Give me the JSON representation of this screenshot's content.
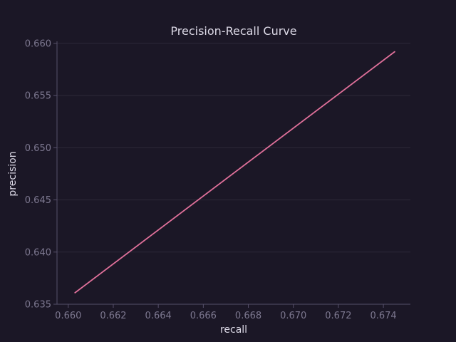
{
  "chart_data": {
    "type": "line",
    "title": "Precision-Recall Curve",
    "xlabel": "recall",
    "ylabel": "precision",
    "xlim": [
      0.6595,
      0.6752
    ],
    "ylim": [
      0.635,
      0.6602
    ],
    "x_ticks": [
      0.66,
      0.662,
      0.664,
      0.666,
      0.668,
      0.67,
      0.672,
      0.674
    ],
    "x_tick_labels": [
      "0.660",
      "0.662",
      "0.664",
      "0.666",
      "0.668",
      "0.670",
      "0.672",
      "0.674"
    ],
    "y_ticks": [
      0.635,
      0.64,
      0.645,
      0.65,
      0.655,
      0.66
    ],
    "y_tick_labels": [
      "0.635",
      "0.640",
      "0.645",
      "0.650",
      "0.655",
      "0.660"
    ],
    "grid": true,
    "series": [
      {
        "color": "#e0709a",
        "x": [
          0.6603,
          0.6745
        ],
        "y": [
          0.6361,
          0.6592
        ]
      }
    ]
  }
}
